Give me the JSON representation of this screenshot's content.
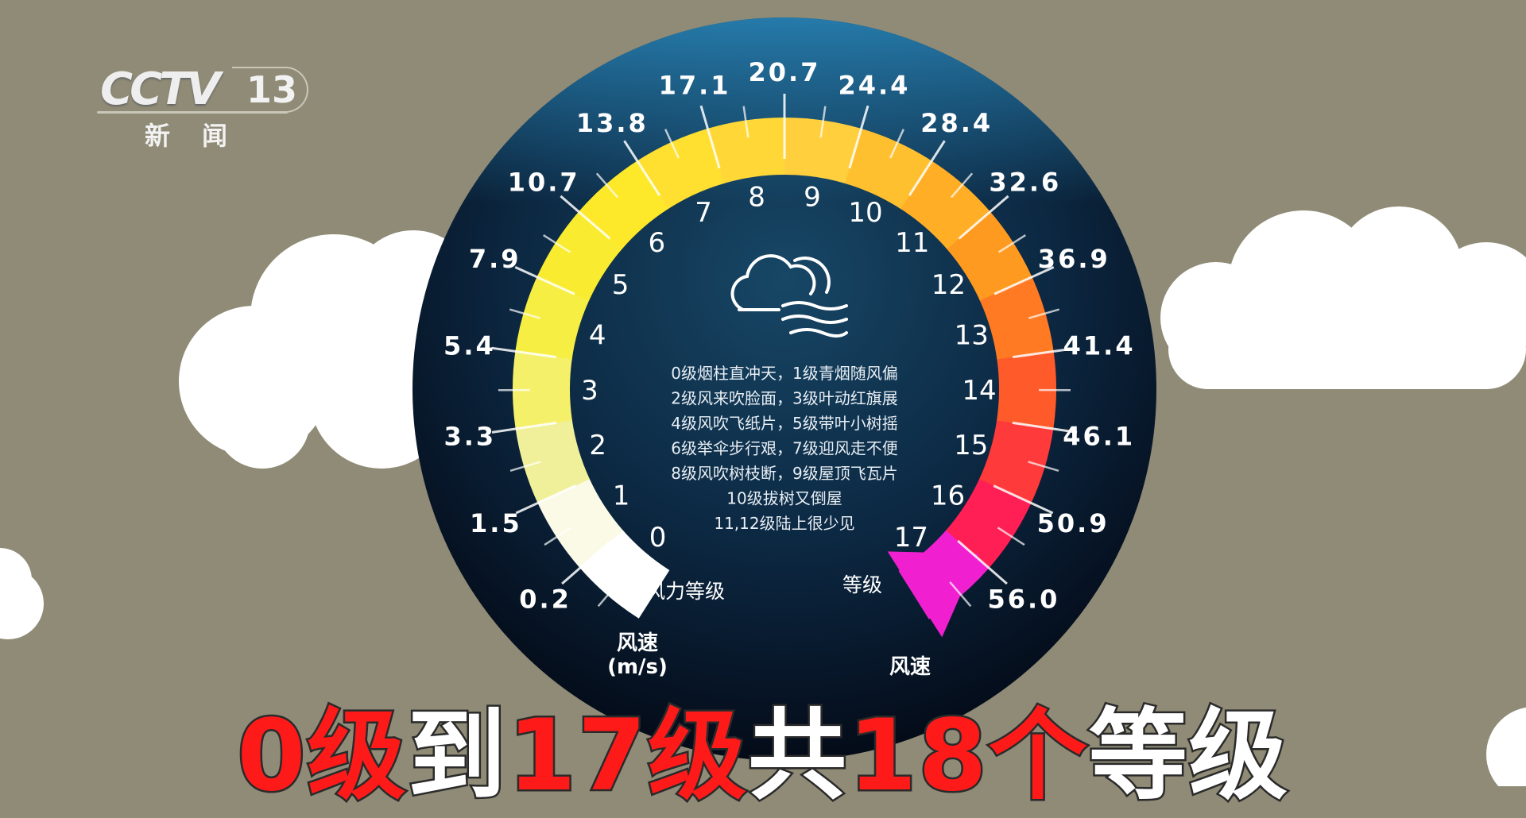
{
  "logo": {
    "brand": "CCTV",
    "channel": "13",
    "subtitle": "新闻"
  },
  "dial": {
    "levels": [
      "0",
      "1",
      "2",
      "3",
      "4",
      "5",
      "6",
      "7",
      "8",
      "9",
      "10",
      "11",
      "12",
      "13",
      "14",
      "15",
      "16",
      "17"
    ],
    "speeds": [
      "0.2",
      "1.5",
      "3.3",
      "5.4",
      "7.9",
      "10.7",
      "13.8",
      "17.1",
      "20.7",
      "24.4",
      "28.4",
      "32.6",
      "36.9",
      "41.4",
      "46.1",
      "50.9",
      "56.0"
    ],
    "band_colors": [
      "#ffffff",
      "#fafae6",
      "#f0f09a",
      "#f5f06a",
      "#f7ee44",
      "#f9ec30",
      "#fde82a",
      "#ffe030",
      "#ffd838",
      "#ffcf3e",
      "#ffc030",
      "#ffae26",
      "#ff9a20",
      "#ff7a22",
      "#ff5a2a",
      "#ff3a3a",
      "#ff1f55",
      "#f020d0"
    ],
    "arrow_color": "#f020d0",
    "level_label": "风力等级",
    "speed_label": "风速",
    "speed_unit": "(m/s)",
    "end_level_label": "等级",
    "end_speed_label": "风速",
    "icon": "cloud-wind-icon",
    "rhyme": [
      "0级烟柱直冲天，1级青烟随风偏",
      "2级风来吹脸面，3级叶动红旗展",
      "4级风吹飞纸片，5级带叶小树摇",
      "6级举伞步行艰，7级迎风走不便",
      "8级风吹树枝断，9级屋顶飞瓦片",
      "10级拔树又倒屋",
      "11,12级陆上很少见"
    ]
  },
  "caption": {
    "p1": "0级",
    "p2": "到",
    "p3": "17级",
    "p4": "共",
    "p5": "18个",
    "p6": "等级"
  }
}
